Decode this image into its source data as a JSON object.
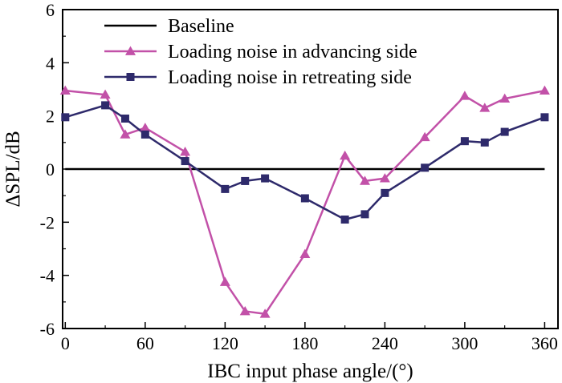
{
  "chart_data": {
    "type": "line",
    "title": "",
    "xlabel": "IBC input phase angle/(°)",
    "ylabel": "ΔSPL/dB",
    "xlim": [
      -2,
      370
    ],
    "ylim": [
      -6,
      6
    ],
    "xticks": [
      0,
      60,
      120,
      180,
      240,
      300,
      360
    ],
    "yticks": [
      -6,
      -4,
      -2,
      0,
      2,
      4,
      6
    ],
    "legend": "top-left",
    "grid": false,
    "series": [
      {
        "name": "Baseline",
        "color": "#000000",
        "marker": "none",
        "x": [
          0,
          360
        ],
        "y": [
          0,
          0
        ]
      },
      {
        "name": "Loading noise in advancing side",
        "color": "#c251a8",
        "marker": "triangle",
        "x": [
          0,
          30,
          45,
          60,
          90,
          120,
          135,
          150,
          180,
          210,
          225,
          240,
          270,
          300,
          315,
          330,
          360
        ],
        "y": [
          2.95,
          2.8,
          1.3,
          1.55,
          0.65,
          -4.25,
          -5.35,
          -5.45,
          -3.2,
          0.5,
          -0.45,
          -0.35,
          1.2,
          2.75,
          2.3,
          2.65,
          2.95
        ]
      },
      {
        "name": "Loading noise in retreating side",
        "color": "#2e2a6b",
        "marker": "square",
        "x": [
          0,
          30,
          45,
          60,
          90,
          120,
          135,
          150,
          180,
          210,
          225,
          240,
          270,
          300,
          315,
          330,
          360
        ],
        "y": [
          1.95,
          2.4,
          1.9,
          1.3,
          0.3,
          -0.75,
          -0.45,
          -0.35,
          -1.1,
          -1.9,
          -1.7,
          -0.9,
          0.05,
          1.05,
          1.0,
          1.4,
          1.95
        ]
      }
    ]
  }
}
